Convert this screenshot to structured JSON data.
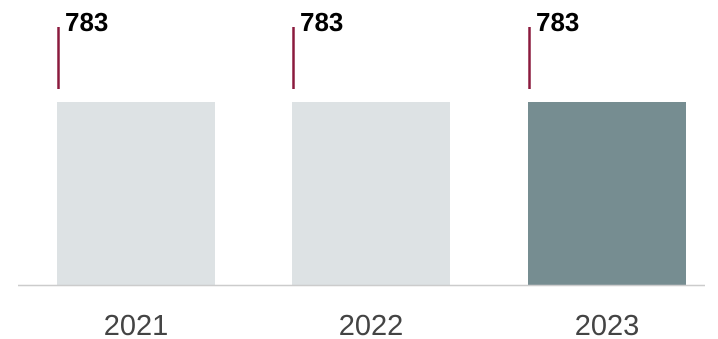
{
  "chart_data": {
    "type": "bar",
    "categories": [
      "2021",
      "2022",
      "2023"
    ],
    "values": [
      783,
      783,
      783
    ],
    "value_labels": [
      "783",
      "783",
      "783"
    ],
    "highlight_category": "2023",
    "grid": false,
    "legend": "none",
    "colors": {
      "bar": "#dde2e4",
      "bar_highlight": "#768d91",
      "marker": "#8b1a3e",
      "baseline": "#cccccc",
      "tick_text": "#444444"
    }
  }
}
